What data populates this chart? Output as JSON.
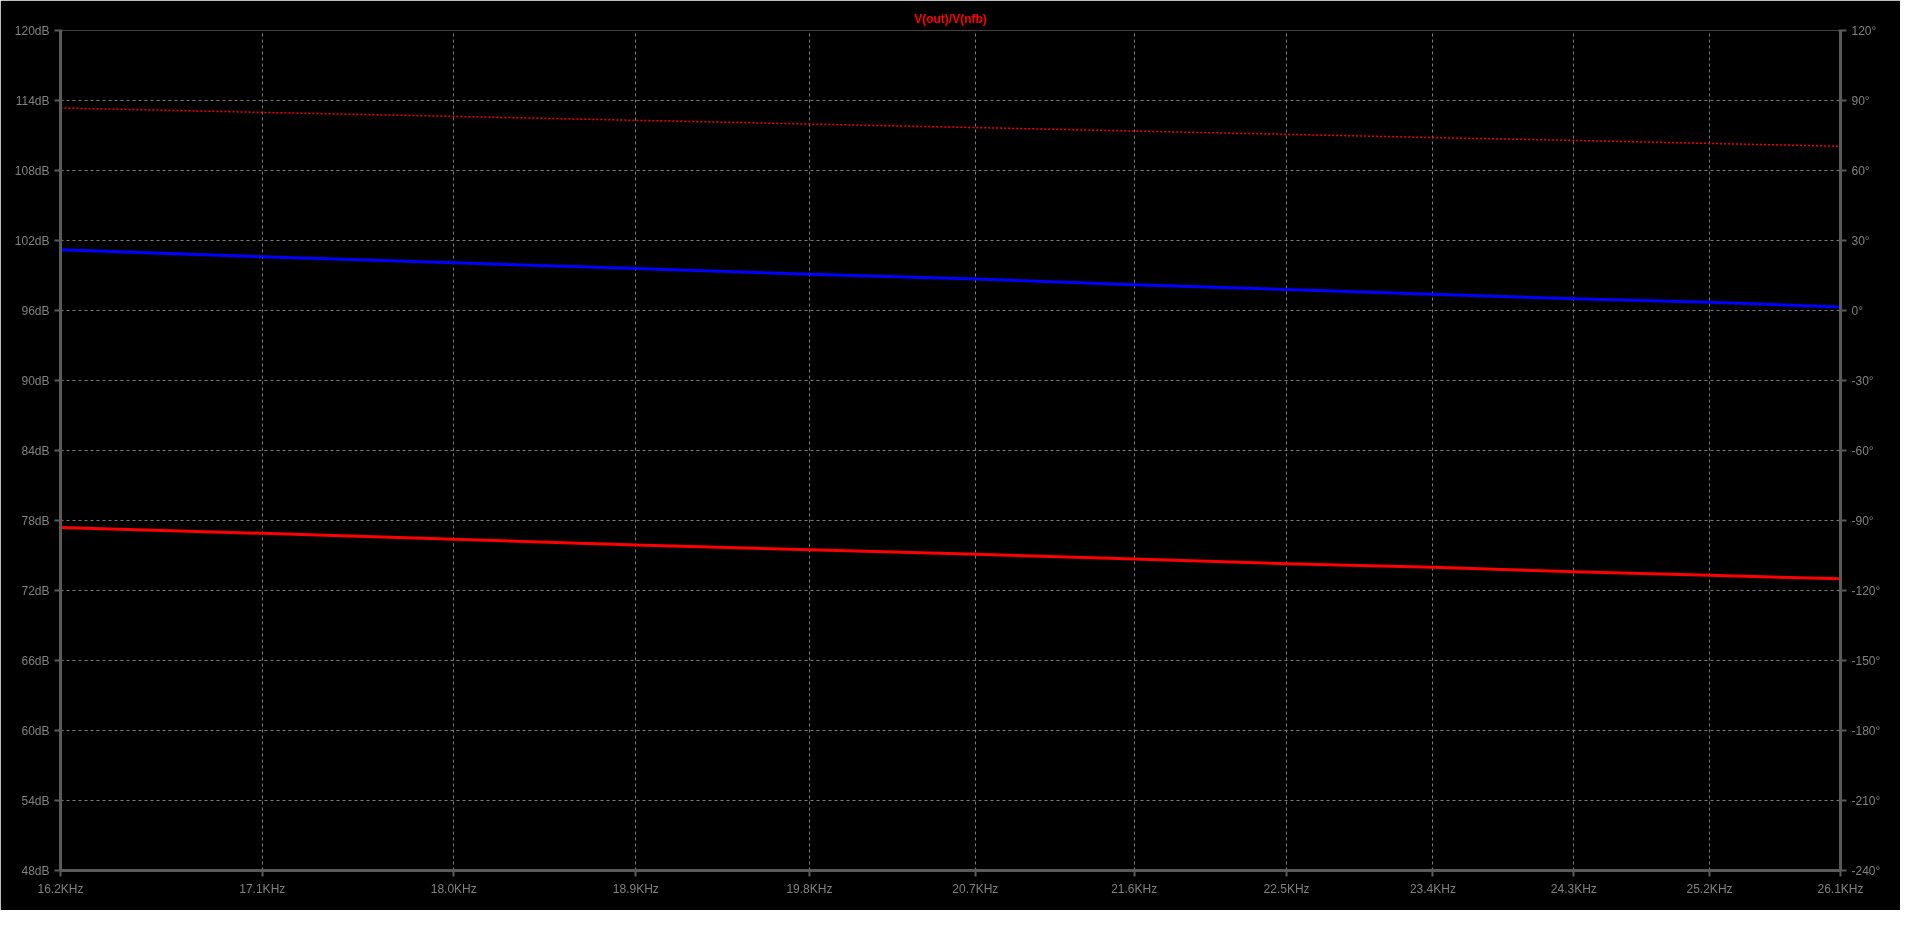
{
  "chart_data": {
    "type": "line",
    "title": "V(out)/V(nfb)",
    "log": "x",
    "grid": true,
    "x": [
      16.2,
      17.1,
      18.0,
      18.9,
      19.8,
      20.7,
      21.6,
      22.5,
      23.4,
      24.3,
      25.2,
      26.1
    ],
    "xlim": [
      16.2,
      26.1
    ],
    "xticks": [
      {
        "value": 16.2,
        "label": "16.2KHz"
      },
      {
        "value": 17.1,
        "label": "17.1KHz"
      },
      {
        "value": 18.0,
        "label": "18.0KHz"
      },
      {
        "value": 18.9,
        "label": "18.9KHz"
      },
      {
        "value": 19.8,
        "label": "19.8KHz"
      },
      {
        "value": 20.7,
        "label": "20.7KHz"
      },
      {
        "value": 21.6,
        "label": "21.6KHz"
      },
      {
        "value": 22.5,
        "label": "22.5KHz"
      },
      {
        "value": 23.4,
        "label": "23.4KHz"
      },
      {
        "value": 24.3,
        "label": "24.3KHz"
      },
      {
        "value": 25.2,
        "label": "25.2KHz"
      },
      {
        "value": 26.1,
        "label": "26.1KHz"
      }
    ],
    "ylim": [
      48,
      120
    ],
    "yticks": [
      {
        "value": 48,
        "label": "48dB"
      },
      {
        "value": 54,
        "label": "54dB"
      },
      {
        "value": 60,
        "label": "60dB"
      },
      {
        "value": 66,
        "label": "66dB"
      },
      {
        "value": 72,
        "label": "72dB"
      },
      {
        "value": 78,
        "label": "78dB"
      },
      {
        "value": 84,
        "label": "84dB"
      },
      {
        "value": 90,
        "label": "90dB"
      },
      {
        "value": 96,
        "label": "96dB"
      },
      {
        "value": 102,
        "label": "102dB"
      },
      {
        "value": 108,
        "label": "108dB"
      },
      {
        "value": 114,
        "label": "114dB"
      },
      {
        "value": 120,
        "label": "120dB"
      }
    ],
    "y2lim": [
      -240,
      120
    ],
    "y2ticks": [
      {
        "value": -240,
        "label": "-240°"
      },
      {
        "value": -210,
        "label": "-210°"
      },
      {
        "value": -180,
        "label": "-180°"
      },
      {
        "value": -150,
        "label": "-150°"
      },
      {
        "value": -120,
        "label": "-120°"
      },
      {
        "value": -90,
        "label": "-90°"
      },
      {
        "value": -60,
        "label": "-60°"
      },
      {
        "value": -30,
        "label": "-30°"
      },
      {
        "value": 0,
        "label": "0°"
      },
      {
        "value": 30,
        "label": "30°"
      },
      {
        "value": 60,
        "label": "60°"
      },
      {
        "value": 90,
        "label": "90°"
      },
      {
        "value": 120,
        "label": "120°"
      }
    ],
    "series": [
      {
        "color": "#0000ff",
        "line_style": "solid",
        "values": [
          101.2,
          100.6,
          100.1,
          99.6,
          99.1,
          98.7,
          98.2,
          97.8,
          97.4,
          97.0,
          96.7,
          96.3
        ]
      },
      {
        "color": "#ff0000",
        "line_style": "solid",
        "values": [
          77.4,
          76.9,
          76.4,
          75.9,
          75.5,
          75.1,
          74.7,
          74.3,
          74.0,
          73.6,
          73.3,
          73.0
        ]
      },
      {
        "color": "#ff0000",
        "line_style": "dotted",
        "axis": "y2",
        "values": [
          86.8,
          84.9,
          83.2,
          81.5,
          79.9,
          78.4,
          76.9,
          75.5,
          74.1,
          72.9,
          71.6,
          70.4
        ]
      }
    ]
  }
}
